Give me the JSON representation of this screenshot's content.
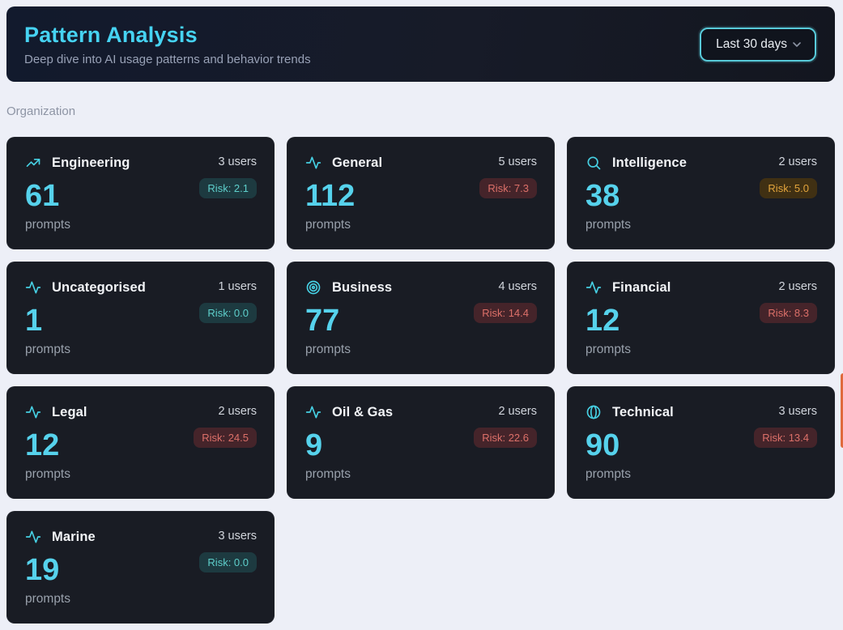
{
  "header": {
    "title": "Pattern Analysis",
    "subtitle": "Deep dive into AI usage patterns and behavior trends",
    "range_selector": {
      "label": "Last 30 days"
    }
  },
  "section": {
    "label": "Organization"
  },
  "accent_colors": {
    "title_cyan": "#46d3f2",
    "count_cyan": "#56d2ec",
    "icon_cyan": "#46cfe2",
    "risk_low": "#5ecfcb",
    "risk_medium": "#e2a43c",
    "risk_high": "#dc7069",
    "edge_accent": "#e06a3c",
    "dropdown_border": "#58cad9"
  },
  "cards": [
    {
      "name": "Engineering",
      "icon": "trending-up",
      "users": "3 users",
      "risk": "Risk: 2.1",
      "risk_level": "low",
      "count": "61",
      "unit": "prompts"
    },
    {
      "name": "General",
      "icon": "activity",
      "users": "5 users",
      "risk": "Risk: 7.3",
      "risk_level": "high",
      "count": "112",
      "unit": "prompts"
    },
    {
      "name": "Intelligence",
      "icon": "search",
      "users": "2 users",
      "risk": "Risk: 5.0",
      "risk_level": "medium",
      "count": "38",
      "unit": "prompts"
    },
    {
      "name": "Uncategorised",
      "icon": "activity",
      "users": "1 users",
      "risk": "Risk: 0.0",
      "risk_level": "low",
      "count": "1",
      "unit": "prompts"
    },
    {
      "name": "Business",
      "icon": "target",
      "users": "4 users",
      "risk": "Risk: 14.4",
      "risk_level": "high",
      "count": "77",
      "unit": "prompts"
    },
    {
      "name": "Financial",
      "icon": "activity",
      "users": "2 users",
      "risk": "Risk: 8.3",
      "risk_level": "high",
      "count": "12",
      "unit": "prompts"
    },
    {
      "name": "Legal",
      "icon": "activity",
      "users": "2 users",
      "risk": "Risk: 24.5",
      "risk_level": "high",
      "count": "12",
      "unit": "prompts"
    },
    {
      "name": "Oil & Gas",
      "icon": "activity",
      "users": "2 users",
      "risk": "Risk: 22.6",
      "risk_level": "high",
      "count": "9",
      "unit": "prompts"
    },
    {
      "name": "Technical",
      "icon": "sphere",
      "users": "3 users",
      "risk": "Risk: 13.4",
      "risk_level": "high",
      "count": "90",
      "unit": "prompts"
    },
    {
      "name": "Marine",
      "icon": "activity",
      "users": "3 users",
      "risk": "Risk: 0.0",
      "risk_level": "low",
      "count": "19",
      "unit": "prompts"
    }
  ]
}
